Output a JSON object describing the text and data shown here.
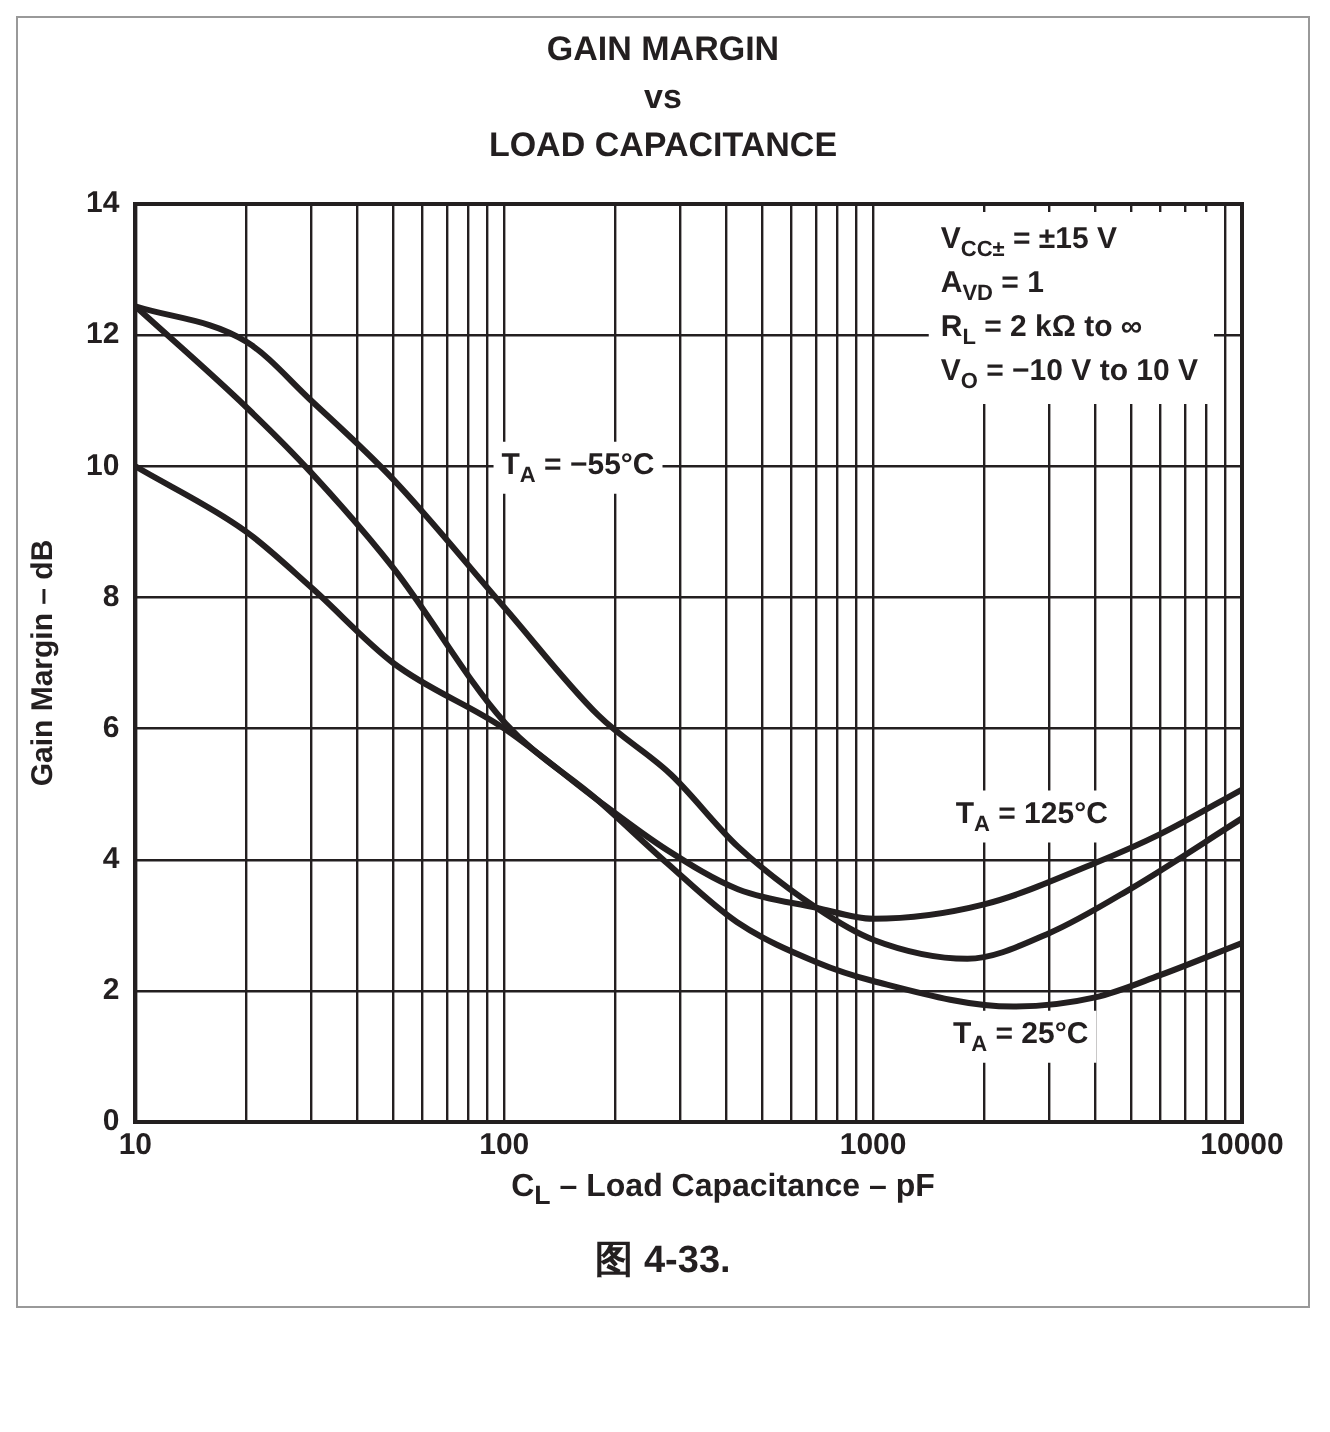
{
  "chart_data": {
    "type": "line",
    "title": "GAIN MARGIN\nvs\nLOAD CAPACITANCE",
    "xlabel": "C$_{L}$ – Load Capacitance – pF",
    "ylabel": "Gain Margin – dB",
    "log": "x",
    "grid": true,
    "legend": false,
    "marker": "none",
    "line_style": "solid",
    "xlim": [
      10,
      10000
    ],
    "ylim": [
      0,
      14
    ],
    "xticks": [
      10,
      {
        "value": 20,
        "label": null
      },
      {
        "value": 30,
        "label": null
      },
      {
        "value": 40,
        "label": null
      },
      {
        "value": 50,
        "label": null
      },
      {
        "value": 60,
        "label": null
      },
      {
        "value": 70,
        "label": null
      },
      {
        "value": 80,
        "label": null
      },
      {
        "value": 90,
        "label": null
      },
      100,
      {
        "value": 200,
        "label": null
      },
      {
        "value": 300,
        "label": null
      },
      {
        "value": 400,
        "label": null
      },
      {
        "value": 500,
        "label": null
      },
      {
        "value": 600,
        "label": null
      },
      {
        "value": 700,
        "label": null
      },
      {
        "value": 800,
        "label": null
      },
      {
        "value": 900,
        "label": null
      },
      1000,
      {
        "value": 2000,
        "label": null
      },
      {
        "value": 3000,
        "label": null
      },
      {
        "value": 4000,
        "label": null
      },
      {
        "value": 5000,
        "label": null
      },
      {
        "value": 6000,
        "label": null
      },
      {
        "value": 7000,
        "label": null
      },
      {
        "value": 8000,
        "label": null
      },
      {
        "value": 9000,
        "label": null
      },
      10000
    ],
    "yticks": [
      0,
      2,
      4,
      6,
      8,
      10,
      12,
      14
    ],
    "series": [
      {
        "name": "T$_{A}$ = −55°C",
        "color": "#231f20",
        "x": [
          10,
          20,
          30,
          50,
          100,
          180,
          283,
          430,
          700,
          1000,
          1800,
          3000,
          5000,
          10000
        ],
        "values": [
          12.44,
          11.9,
          11.0,
          9.8,
          7.85,
          6.2,
          5.3,
          4.2,
          3.27,
          2.78,
          2.49,
          2.88,
          3.56,
          4.63
        ]
      },
      {
        "name": "T$_{A}$ = 25°C",
        "color": "#231f20",
        "x": [
          10,
          20,
          30,
          50,
          100,
          180,
          276,
          427,
          700,
          1000,
          2400,
          4000,
          6000,
          10000
        ],
        "values": [
          12.44,
          10.9,
          9.9,
          8.45,
          6.1,
          4.9,
          3.95,
          3.05,
          2.44,
          2.15,
          1.76,
          1.9,
          2.24,
          2.73
        ]
      },
      {
        "name": "T$_{A}$ = 125°C",
        "color": "#231f20",
        "x": [
          10,
          20,
          30,
          50,
          100,
          180,
          276,
          430,
          700,
          1000,
          2000,
          4000,
          6000,
          10000
        ],
        "values": [
          10.0,
          9.0,
          8.15,
          7.0,
          6.0,
          4.9,
          4.15,
          3.55,
          3.27,
          3.1,
          3.32,
          3.95,
          4.39,
          5.07
        ]
      }
    ],
    "annotations": [
      "V$_{CC±}$ = ±15 V",
      "A$_{VD}$ = 1",
      "R$_{L}$ = 2 kΩ to ∞",
      "V$_{O}$ = −10 V to 10 V",
      "图 4-33."
    ]
  }
}
